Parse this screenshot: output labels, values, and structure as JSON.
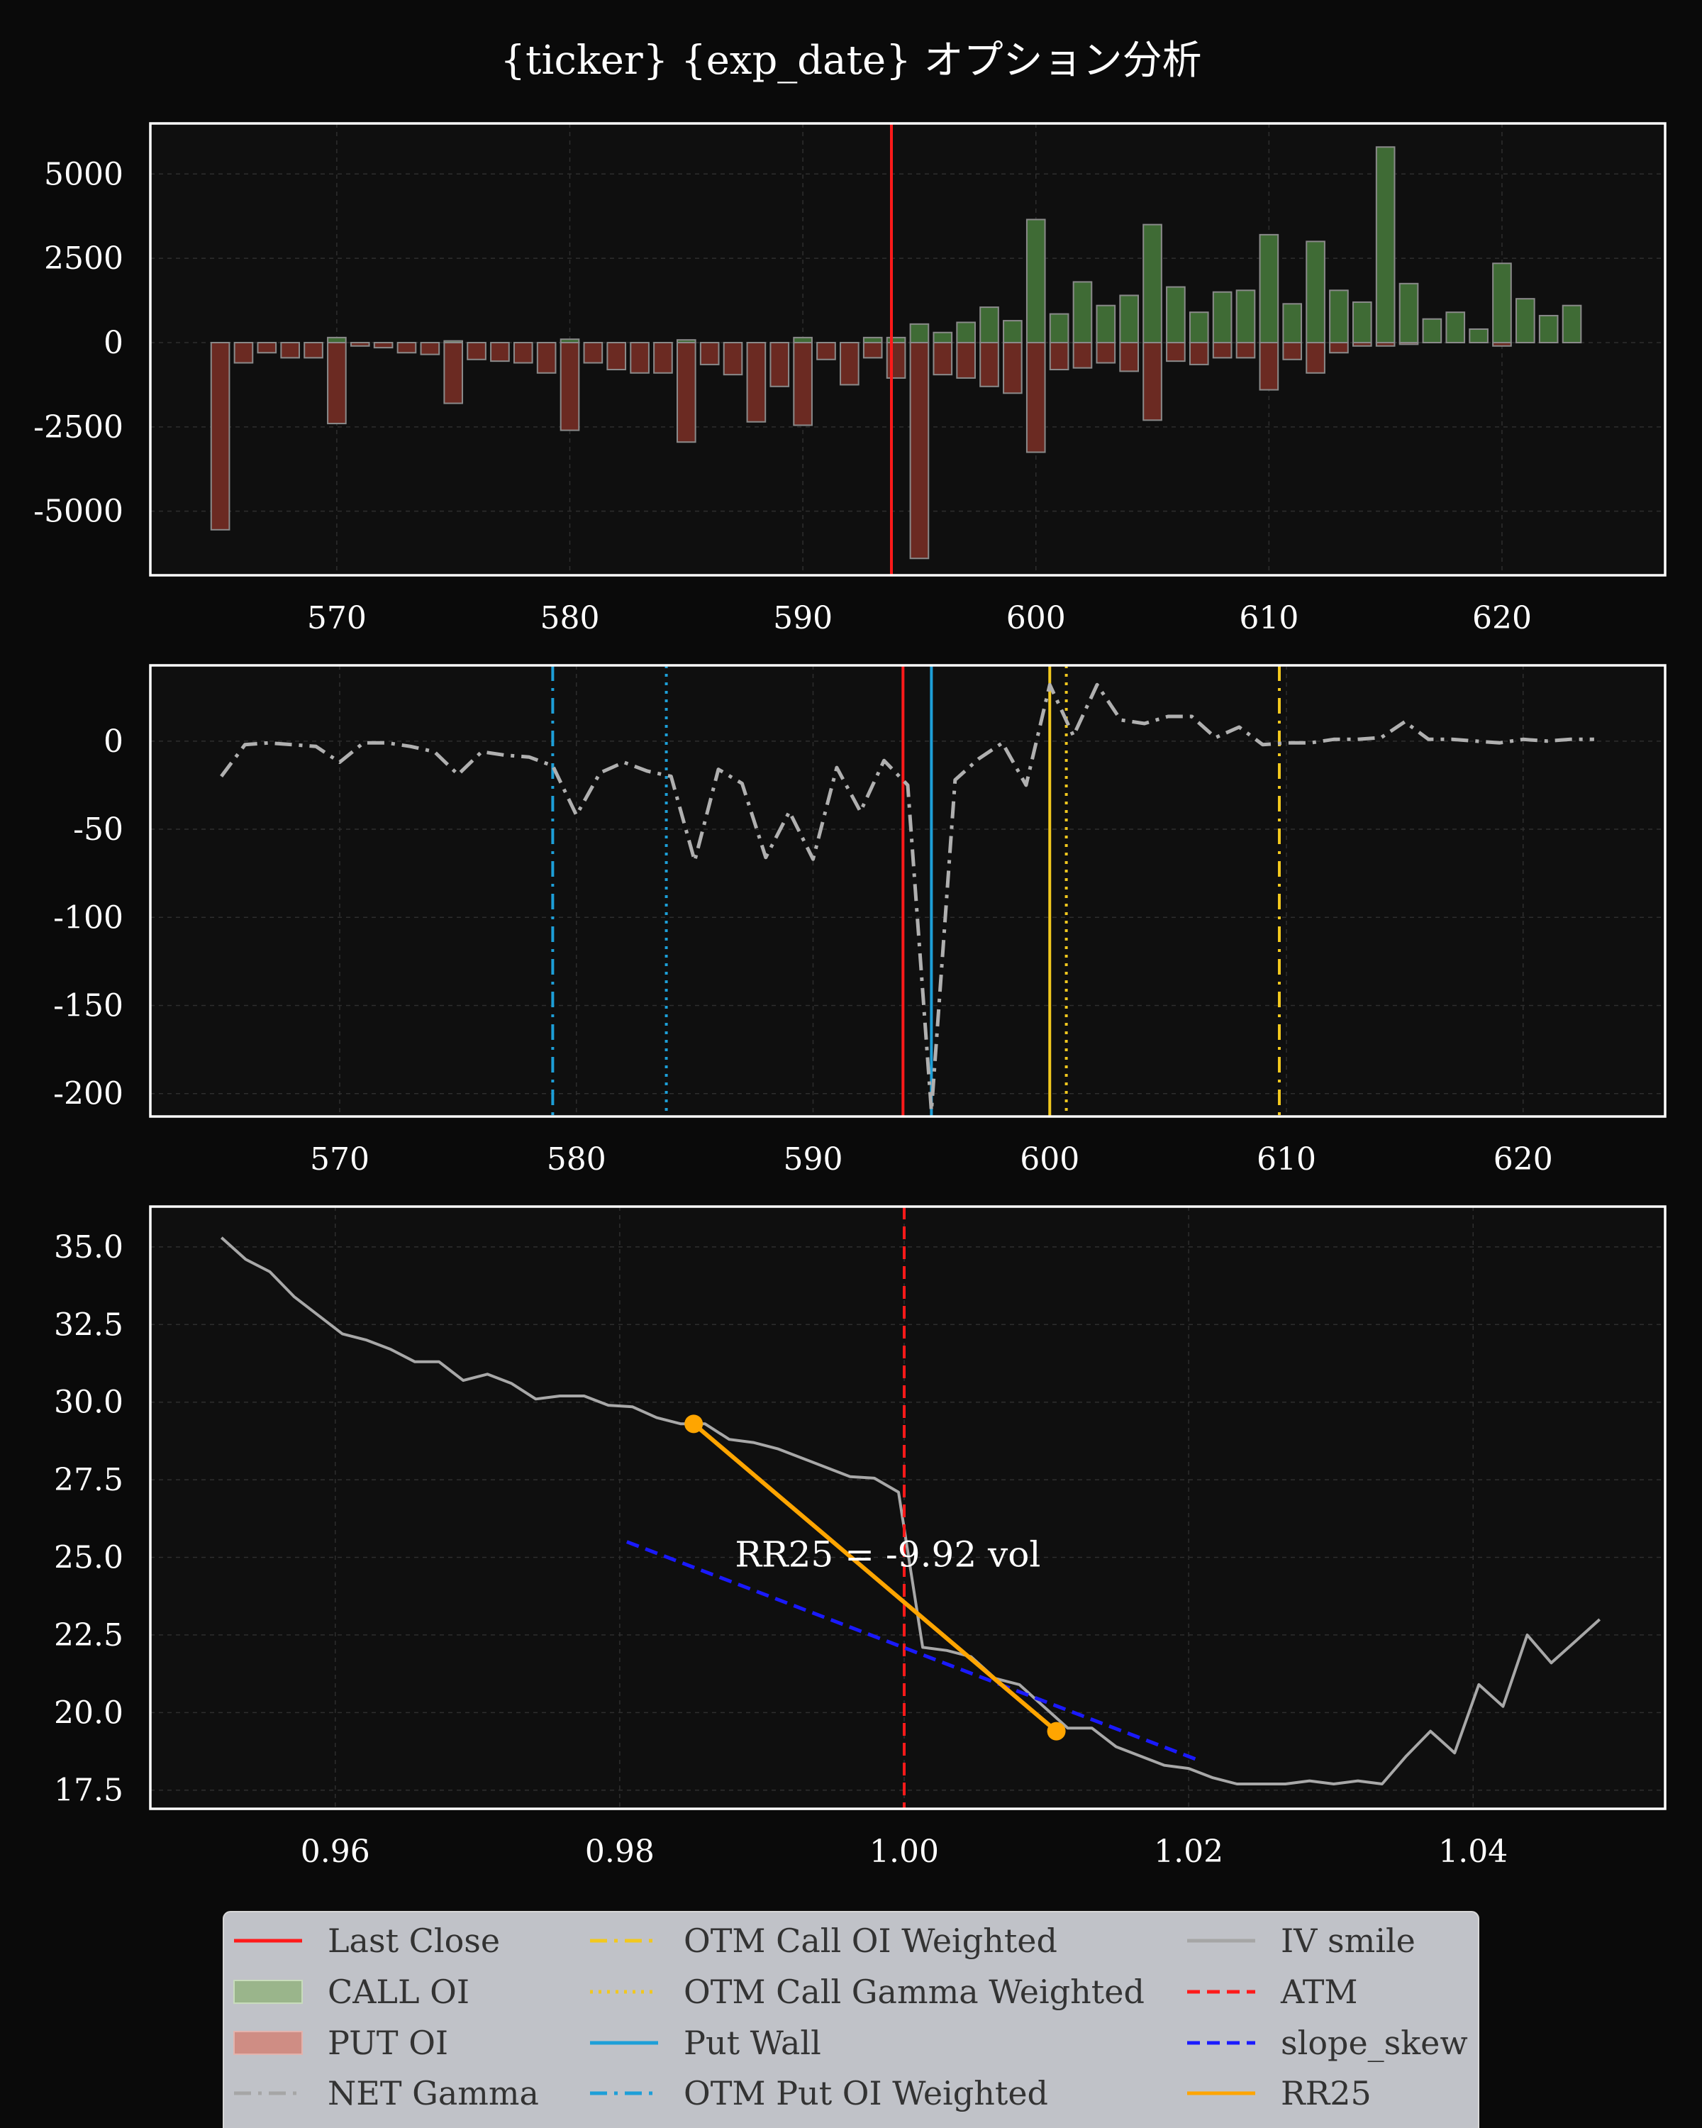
{
  "title": "{ticker} {exp_date} オプション分析",
  "colors": {
    "background": "#0a0a0a",
    "panel": "#0f0f0f",
    "call": "#3f6b35",
    "put": "#6b2a22",
    "last_close": "#ff1a1a",
    "gamma": "#b0b0b0",
    "call_yellow": "#f2c81e",
    "put_blue": "#1d9fd8",
    "iv": "#a8a8a8",
    "slope": "#1a1aff",
    "rr25": "#ffa500"
  },
  "chart_data": [
    {
      "type": "bar",
      "xlim": [
        562,
        627
      ],
      "ylim": [
        -6900,
        6500
      ],
      "xticks": [
        570,
        580,
        590,
        600,
        610,
        620
      ],
      "yticks": [
        5000,
        2500,
        0,
        -2500,
        -5000
      ],
      "last_close": 593.8,
      "x": [
        565,
        566,
        567,
        568,
        569,
        570,
        571,
        572,
        573,
        574,
        575,
        576,
        577,
        578,
        579,
        580,
        581,
        582,
        583,
        584,
        585,
        586,
        587,
        588,
        589,
        590,
        591,
        592,
        593,
        594,
        595,
        596,
        597,
        598,
        599,
        600,
        601,
        602,
        603,
        604,
        605,
        606,
        607,
        608,
        609,
        610,
        611,
        612,
        613,
        614,
        615,
        616,
        617,
        618,
        619,
        620,
        621,
        622,
        623
      ],
      "series": [
        {
          "name": "CALL OI",
          "values": [
            0,
            0,
            0,
            0,
            0,
            150,
            0,
            0,
            0,
            0,
            50,
            0,
            0,
            0,
            0,
            100,
            0,
            0,
            0,
            0,
            80,
            0,
            0,
            0,
            0,
            150,
            0,
            0,
            150,
            150,
            550,
            300,
            600,
            1050,
            650,
            3650,
            850,
            1800,
            1100,
            1400,
            3500,
            1650,
            900,
            1500,
            1550,
            3200,
            1150,
            3000,
            1550,
            1200,
            5800,
            1750,
            700,
            900,
            400,
            2350,
            1300,
            800,
            1100
          ]
        },
        {
          "name": "PUT OI",
          "values": [
            -5550,
            -600,
            -300,
            -450,
            -450,
            -2400,
            -100,
            -150,
            -300,
            -350,
            -1800,
            -500,
            -550,
            -600,
            -900,
            -2600,
            -600,
            -800,
            -900,
            -900,
            -2950,
            -650,
            -950,
            -2350,
            -1300,
            -2450,
            -500,
            -1250,
            -450,
            -1050,
            -6400,
            -950,
            -1050,
            -1300,
            -1500,
            -3250,
            -800,
            -750,
            -600,
            -850,
            -2300,
            -550,
            -650,
            -450,
            -450,
            -1400,
            -500,
            -900,
            -300,
            -100,
            -100,
            -50,
            0,
            0,
            0,
            -100,
            0,
            0,
            0
          ]
        }
      ]
    },
    {
      "type": "line",
      "xlim": [
        562,
        626
      ],
      "ylim": [
        -213,
        43
      ],
      "xticks": [
        570,
        580,
        590,
        600,
        610,
        620
      ],
      "yticks": [
        0,
        -50,
        -100,
        -150,
        -200
      ],
      "last_close": 593.8,
      "vlines": {
        "otm_put_oi_weighted": 579.0,
        "otm_put_gamma_weighted": 583.8,
        "put_wall": 595.0,
        "call_wall": 600.0,
        "otm_call_gamma_weighted": 600.7,
        "otm_call_oi_weighted": 609.7
      },
      "series": [
        {
          "name": "NET Gamma",
          "x": [
            565,
            566,
            567,
            568,
            569,
            570,
            571,
            572,
            573,
            574,
            575,
            576,
            577,
            578,
            579,
            580,
            581,
            582,
            583,
            584,
            585,
            586,
            587,
            588,
            589,
            590,
            591,
            592,
            593,
            594,
            595,
            596,
            597,
            598,
            599,
            600,
            601,
            602,
            603,
            604,
            605,
            606,
            607,
            608,
            609,
            610,
            611,
            612,
            613,
            614,
            615,
            616,
            617,
            618,
            619,
            620,
            621,
            622,
            623
          ],
          "values": [
            -20,
            -2,
            -1,
            -2,
            -3,
            -12,
            -1,
            -1,
            -3,
            -6,
            -19,
            -6,
            -8,
            -9,
            -14,
            -42,
            -18,
            -12,
            -17,
            -20,
            -68,
            -16,
            -24,
            -66,
            -40,
            -67,
            -15,
            -40,
            -11,
            -25,
            -210,
            -22,
            -10,
            -1,
            -25,
            32,
            3,
            32,
            12,
            10,
            14,
            14,
            2,
            8,
            -2,
            -1,
            -1,
            1,
            1,
            2,
            11,
            1,
            1,
            0,
            -1,
            1,
            0,
            1,
            1
          ]
        }
      ]
    },
    {
      "type": "line",
      "xlim": [
        0.947,
        1.0535
      ],
      "ylim": [
        16.9,
        36.3
      ],
      "xticks": [
        0.96,
        0.98,
        1.0,
        1.02,
        1.04
      ],
      "xtick_labels": [
        "0.96",
        "0.98",
        "1.00",
        "1.02",
        "1.04"
      ],
      "yticks": [
        35.0,
        32.5,
        30.0,
        27.5,
        25.0,
        22.5,
        20.0,
        17.5
      ],
      "ytick_labels": [
        "35.0",
        "32.5",
        "30.0",
        "27.5",
        "25.0",
        "22.5",
        "20.0",
        "17.5"
      ],
      "atm": 1.0,
      "annotation": "RR25 = -9.92 vol",
      "series": [
        {
          "name": "IV smile",
          "x": [
            0.952,
            0.9537,
            0.9554,
            0.9571,
            0.9588,
            0.9605,
            0.9622,
            0.9639,
            0.9656,
            0.9673,
            0.969,
            0.9707,
            0.9724,
            0.9741,
            0.9758,
            0.9775,
            0.9792,
            0.9809,
            0.9826,
            0.9843,
            0.986,
            0.9877,
            0.9894,
            0.9911,
            0.9928,
            0.9945,
            0.9962,
            0.9979,
            0.9996,
            1.0013,
            1.003,
            1.0047,
            1.0064,
            1.0081,
            1.0098,
            1.0115,
            1.0132,
            1.0149,
            1.0166,
            1.0183,
            1.02,
            1.0217,
            1.0234,
            1.0251,
            1.0268,
            1.0285,
            1.0302,
            1.0319,
            1.0336,
            1.0353,
            1.037,
            1.0387,
            1.0404,
            1.0421,
            1.0438,
            1.0455,
            1.0472,
            1.0489
          ],
          "values": [
            35.3,
            34.6,
            34.2,
            33.4,
            32.8,
            32.2,
            32.0,
            31.7,
            31.3,
            31.3,
            30.7,
            30.9,
            30.6,
            30.1,
            30.2,
            30.2,
            29.9,
            29.85,
            29.5,
            29.3,
            29.3,
            28.8,
            28.7,
            28.5,
            28.2,
            27.9,
            27.6,
            27.55,
            27.1,
            22.1,
            22.0,
            21.8,
            21.1,
            20.9,
            20.2,
            19.5,
            19.5,
            18.9,
            18.6,
            18.3,
            18.2,
            17.9,
            17.7,
            17.7,
            17.7,
            17.8,
            17.7,
            17.8,
            17.7,
            18.6,
            19.4,
            18.7,
            20.9,
            20.2,
            22.5,
            21.6,
            22.3,
            23.0
          ]
        },
        {
          "name": "slope_skew",
          "x": [
            0.9805,
            1.0205
          ],
          "values": [
            25.5,
            18.5
          ]
        },
        {
          "name": "RR25",
          "x": [
            0.9852,
            1.0107
          ],
          "values": [
            29.3,
            19.4
          ]
        }
      ]
    }
  ],
  "legend": [
    {
      "label": "Last Close",
      "style": "line-red"
    },
    {
      "label": "CALL OI",
      "style": "patch-green"
    },
    {
      "label": "PUT OI",
      "style": "patch-red"
    },
    {
      "label": "NET Gamma",
      "style": "dashdot-gray"
    },
    {
      "label": "OTM Call OI Weighted",
      "style": "dashdot-yellow"
    },
    {
      "label": "OTM Call Gamma Weighted",
      "style": "dotted-yellow"
    },
    {
      "label": "Put Wall",
      "style": "line-blue"
    },
    {
      "label": "OTM Put OI Weighted",
      "style": "dashdot-blue"
    },
    {
      "label": "IV smile",
      "style": "line-gray"
    },
    {
      "label": "ATM",
      "style": "dashed-red"
    },
    {
      "label": "slope_skew",
      "style": "dashed-darkblue"
    },
    {
      "label": "RR25",
      "style": "line-orange"
    }
  ]
}
